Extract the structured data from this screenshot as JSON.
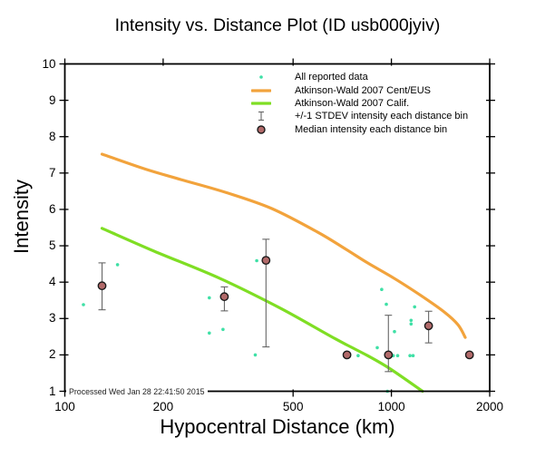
{
  "title": "Intensity vs. Distance Plot (ID usb000jyiv)",
  "footer": "Processed Wed Jan 28 22:41:50 2015",
  "axes": {
    "x": {
      "label": "Hypocentral Distance (km)",
      "scale": "log",
      "min": 100,
      "max": 2000,
      "ticks": [
        100,
        200,
        500,
        1000,
        2000
      ]
    },
    "y": {
      "label": "Intensity",
      "scale": "linear",
      "min": 1,
      "max": 10,
      "ticks": [
        1,
        2,
        3,
        4,
        5,
        6,
        7,
        8,
        9,
        10
      ]
    }
  },
  "colors": {
    "reported": "#3FE0A6",
    "ceus": "#F2A33C",
    "calif": "#7FDE24",
    "median_fill": "#B26A6A",
    "median_edge": "#1a1a1a",
    "errorbar": "#666666",
    "axis": "#000000"
  },
  "legend": [
    {
      "label": "All reported data",
      "marker": "dot"
    },
    {
      "label": "Atkinson-Wald 2007 Cent/EUS",
      "marker": "line-orange"
    },
    {
      "label": "Atkinson-Wald 2007 Calif.",
      "marker": "line-green"
    },
    {
      "label": "+/-1 STDEV intensity each distance bin",
      "marker": "errorbar"
    },
    {
      "label": "Median intensity each distance bin",
      "marker": "circle"
    }
  ],
  "chart_data": {
    "type": "scatter",
    "title": "Intensity vs. Distance Plot (ID usb000jyiv)",
    "xlabel": "Hypocentral Distance (km)",
    "ylabel": "Intensity",
    "xlim": [
      100,
      2000
    ],
    "ylim": [
      1,
      10
    ],
    "x_scale": "log",
    "grid": false,
    "series": [
      {
        "name": "All reported data",
        "type": "scatter",
        "points": [
          [
            114,
            3.38
          ],
          [
            145,
            4.48
          ],
          [
            277,
            3.57
          ],
          [
            277,
            2.6
          ],
          [
            305,
            2.7
          ],
          [
            387,
            4.59
          ],
          [
            383,
            2.0
          ],
          [
            791,
            1.98
          ],
          [
            934,
            3.8
          ],
          [
            965,
            3.39
          ],
          [
            1178,
            3.32
          ],
          [
            1149,
            2.95
          ],
          [
            1149,
            2.85
          ],
          [
            1022,
            2.64
          ],
          [
            905,
            2.2
          ],
          [
            1013,
            1.98
          ],
          [
            1045,
            1.98
          ],
          [
            1140,
            1.98
          ],
          [
            1165,
            1.98
          ],
          [
            972,
            1.0
          ]
        ]
      },
      {
        "name": "Atkinson-Wald 2007 Cent/EUS",
        "type": "line",
        "points": [
          [
            130,
            7.52
          ],
          [
            176,
            7.11
          ],
          [
            227,
            6.82
          ],
          [
            313,
            6.46
          ],
          [
            431,
            6.02
          ],
          [
            593,
            5.38
          ],
          [
            718,
            4.93
          ],
          [
            845,
            4.53
          ],
          [
            1022,
            4.1
          ],
          [
            1242,
            3.61
          ],
          [
            1452,
            3.18
          ],
          [
            1599,
            2.83
          ],
          [
            1683,
            2.48
          ]
        ]
      },
      {
        "name": "Atkinson-Wald 2007 Calif.",
        "type": "line",
        "points": [
          [
            130,
            5.48
          ],
          [
            188,
            4.85
          ],
          [
            299,
            4.1
          ],
          [
            460,
            3.27
          ],
          [
            674,
            2.44
          ],
          [
            845,
            1.98
          ],
          [
            990,
            1.62
          ],
          [
            1246,
            1.0
          ]
        ]
      },
      {
        "name": "Median intensity each distance bin",
        "type": "scatter-errorbar",
        "points": [
          {
            "x": 130,
            "y": 3.9,
            "lo": 3.24,
            "hi": 4.53
          },
          {
            "x": 308,
            "y": 3.6,
            "lo": 3.21,
            "hi": 3.87
          },
          {
            "x": 413,
            "y": 4.6,
            "lo": 2.22,
            "hi": 5.18
          },
          {
            "x": 731,
            "y": 2.0
          },
          {
            "x": 979,
            "y": 2.0,
            "lo": 1.54,
            "hi": 3.09
          },
          {
            "x": 1300,
            "y": 2.8,
            "lo": 2.33,
            "hi": 3.2
          },
          {
            "x": 1734,
            "y": 2.0
          }
        ]
      }
    ]
  }
}
